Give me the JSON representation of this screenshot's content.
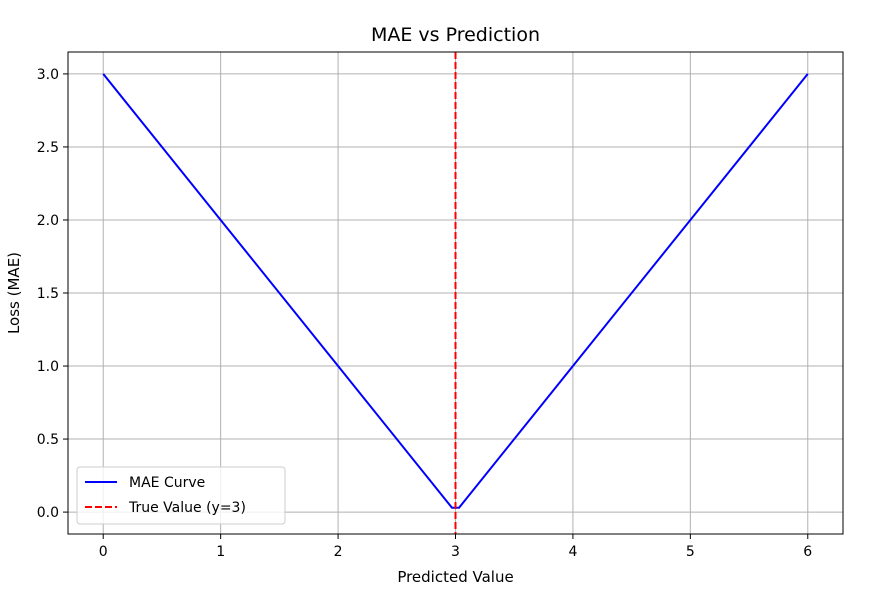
{
  "chart_data": {
    "type": "line",
    "title": "MAE vs Prediction",
    "xlabel": "Predicted Value",
    "ylabel": "Loss (MAE)",
    "xlim": [
      -0.3,
      6.3
    ],
    "ylim": [
      -0.15,
      3.15
    ],
    "xticks": [
      0,
      1,
      2,
      3,
      4,
      5,
      6
    ],
    "xtick_labels": [
      "0",
      "1",
      "2",
      "3",
      "4",
      "5",
      "6"
    ],
    "yticks": [
      0.0,
      0.5,
      1.0,
      1.5,
      2.0,
      2.5,
      3.0
    ],
    "ytick_labels": [
      "0.0",
      "0.5",
      "1.0",
      "1.5",
      "2.0",
      "2.5",
      "3.0"
    ],
    "grid": true,
    "legend_position": "lower-left",
    "series": [
      {
        "name": "MAE Curve",
        "color": "#0000ff",
        "style": "solid",
        "x": [
          0,
          1,
          2,
          2.97,
          3.03,
          4,
          5,
          6
        ],
        "y": [
          3.0,
          2.0,
          1.0,
          0.03,
          0.03,
          1.0,
          2.0,
          3.0
        ]
      }
    ],
    "vlines": [
      {
        "name": "True Value (y=3)",
        "x": 3,
        "color": "#ff0000",
        "style": "dashed"
      }
    ]
  }
}
